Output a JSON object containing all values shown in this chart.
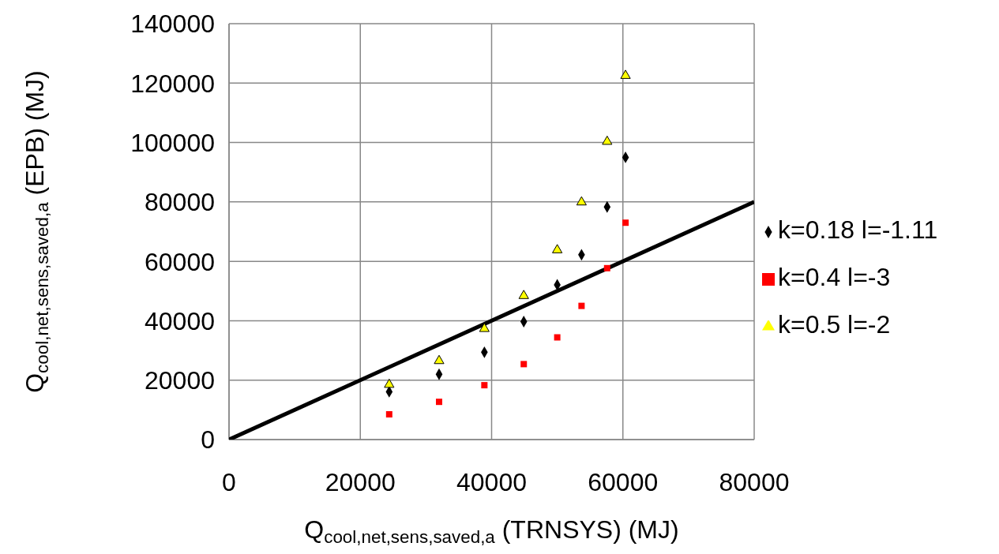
{
  "chart_data": {
    "type": "scatter",
    "xlabel": "Q$_{cool,net,sens,saved,a}$ (TRNSYS) (MJ)",
    "ylabel": "Q$_{cool,net,sens,saved,a}$ (EPB) (MJ)",
    "xlim": [
      0,
      80000
    ],
    "xticks": [
      0,
      20000,
      40000,
      60000,
      80000
    ],
    "ylim": [
      0,
      140000
    ],
    "yticks": [
      0,
      20000,
      40000,
      60000,
      80000,
      100000,
      120000,
      140000
    ],
    "grid": true,
    "legend": "right",
    "x": [
      24400,
      32000,
      38900,
      44900,
      50000,
      53700,
      57600,
      60400
    ],
    "series": [
      {
        "type": "line",
        "color": "#000000",
        "marker": "none",
        "x": [
          0,
          80000
        ],
        "values": [
          0,
          80000
        ]
      },
      {
        "name": "k=0.18 l=-1.11",
        "color": "#000000",
        "marker": "diamond",
        "values": [
          16100,
          22000,
          29400,
          39700,
          52100,
          62200,
          78300,
          95000
        ]
      },
      {
        "name": "k=0.4 l=-3",
        "color": "#ff0000",
        "marker": "square",
        "values": [
          8500,
          12700,
          18300,
          25400,
          34400,
          45000,
          57700,
          73000
        ]
      },
      {
        "name": "k=0.5 l=-2",
        "color": "#ffff00",
        "marker": "triangle",
        "values": [
          18500,
          26500,
          37300,
          48400,
          63800,
          79900,
          100300,
          122500
        ]
      }
    ]
  }
}
